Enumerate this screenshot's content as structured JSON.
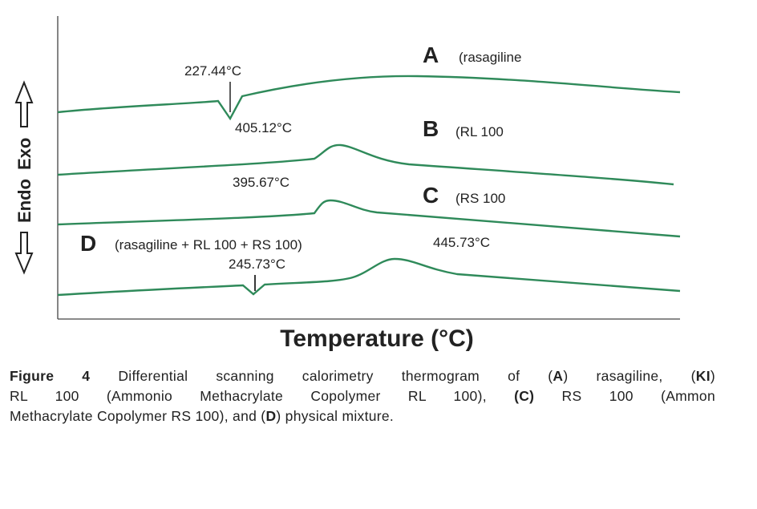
{
  "figure": {
    "curves": [
      {
        "letter": "A",
        "label": "(rasagiline",
        "annotations": [
          "227.44°C"
        ]
      },
      {
        "letter": "B",
        "label": "(RL 100",
        "annotations": [
          "405.12°C"
        ]
      },
      {
        "letter": "C",
        "label": "(RS 100",
        "annotations": [
          "395.67°C"
        ]
      },
      {
        "letter": "D",
        "label": "(rasagiline + RL 100 + RS 100)",
        "annotations": [
          "445.73°C",
          "245.73°C"
        ]
      }
    ],
    "y_axis": [
      "Endo",
      "Exo"
    ],
    "x_axis_title": "Temperature (°C)"
  },
  "caption": {
    "lines": [
      [
        {
          "text": "Figure 4",
          "bold": true
        },
        {
          "text": " Differential scanning calorimetry thermogram of (",
          "bold": false
        },
        {
          "text": "A",
          "bold": true
        },
        {
          "text": ") rasagiline, (",
          "bold": false
        },
        {
          "text": "KI",
          "bold": true
        },
        {
          "text": ")",
          "bold": false
        }
      ],
      [
        {
          "text": "RL 100 (Ammonio Methacrylate Copolymer RL 100), ",
          "bold": false
        },
        {
          "text": "(C)",
          "bold": true
        },
        {
          "text": " RS 100 (Ammon",
          "bold": false
        }
      ],
      [
        {
          "text": "Methacrylate Copolymer RS 100), and (",
          "bold": false
        },
        {
          "text": "D",
          "bold": true
        },
        {
          "text": ") physical mixture.",
          "bold": false
        }
      ]
    ]
  }
}
